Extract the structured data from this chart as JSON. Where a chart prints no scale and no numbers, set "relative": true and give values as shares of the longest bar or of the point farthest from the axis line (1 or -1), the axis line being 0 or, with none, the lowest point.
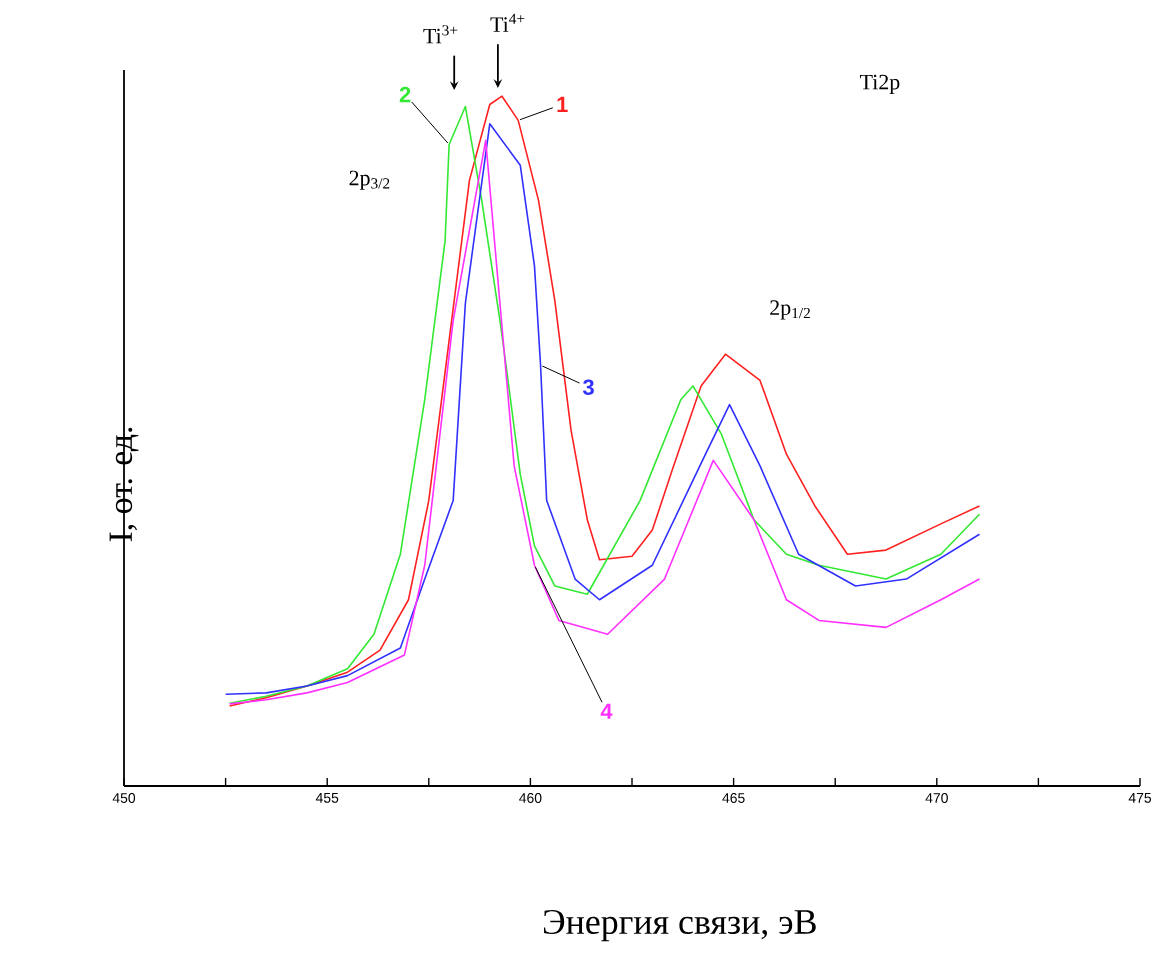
{
  "chart_data": {
    "type": "line",
    "relative": true,
    "xlabel": "Энергия связи, эВ",
    "ylabel": "I, от. ед.",
    "xlim": [
      450,
      475
    ],
    "xticks": [
      450,
      {
        "value": 452.5,
        "label": null
      },
      455,
      {
        "value": 457.5,
        "label": null
      },
      460,
      {
        "value": 462.5,
        "label": null
      },
      465,
      {
        "value": 467.5,
        "label": null
      },
      470,
      {
        "value": 472.5,
        "label": null
      },
      475
    ],
    "annotations": [
      "Ti$^{3+}$",
      "Ti$^{4+}$",
      "Ti2p",
      "2p$_{3/2}$",
      "2p$_{1/2}$"
    ],
    "legend": false,
    "grid": false,
    "marker": "none",
    "line_style": "solid",
    "series": [
      {
        "name": "1",
        "color": "#ff2020",
        "x": [
          452.6,
          453.5,
          454.5,
          455.5,
          456.3,
          457.0,
          457.5,
          458.0,
          458.5,
          459.0,
          459.3,
          459.7,
          460.2,
          460.6,
          461.0,
          461.4,
          461.7,
          462.5,
          463.0,
          463.5,
          464.2,
          464.8,
          465.65,
          466.3,
          467.0,
          467.8,
          468.75,
          470.1,
          471.05
        ],
        "values": [
          0.116,
          0.128,
          0.145,
          0.165,
          0.197,
          0.27,
          0.414,
          0.646,
          0.878,
          0.988,
          1.0,
          0.965,
          0.849,
          0.704,
          0.516,
          0.386,
          0.328,
          0.333,
          0.371,
          0.46,
          0.58,
          0.626,
          0.588,
          0.481,
          0.406,
          0.336,
          0.342,
          0.38,
          0.406
        ]
      },
      {
        "name": "2",
        "color": "#33e833",
        "x": [
          452.6,
          453.5,
          454.5,
          455.5,
          456.15,
          456.8,
          457.4,
          457.9,
          458.0,
          458.4,
          458.8,
          459.25,
          459.4,
          459.75,
          460.1,
          460.6,
          461.4,
          462.7,
          463.7,
          464.0,
          464.7,
          465.5,
          466.3,
          467.1,
          468.75,
          470.1,
          471.05
        ],
        "values": [
          0.12,
          0.13,
          0.145,
          0.17,
          0.22,
          0.336,
          0.56,
          0.79,
          0.93,
          0.985,
          0.85,
          0.675,
          0.61,
          0.452,
          0.348,
          0.29,
          0.278,
          0.414,
          0.56,
          0.58,
          0.51,
          0.386,
          0.336,
          0.32,
          0.3,
          0.336,
          0.394
        ]
      },
      {
        "name": "3",
        "color": "#3030ff",
        "x": [
          452.5,
          453.5,
          454.5,
          455.5,
          456.8,
          457.4,
          458.1,
          458.4,
          459.0,
          459.75,
          460.1,
          460.25,
          460.4,
          461.1,
          461.7,
          463.0,
          464.3,
          464.9,
          465.65,
          466.6,
          468.0,
          469.25,
          471.05
        ],
        "values": [
          0.133,
          0.135,
          0.145,
          0.16,
          0.2,
          0.3,
          0.414,
          0.7,
          0.96,
          0.9,
          0.754,
          0.61,
          0.414,
          0.3,
          0.27,
          0.32,
          0.48,
          0.553,
          0.464,
          0.336,
          0.29,
          0.3,
          0.365
        ]
      },
      {
        "name": "4",
        "color": "#ff30ff",
        "x": [
          452.6,
          453.5,
          454.5,
          455.5,
          456.9,
          457.4,
          458.1,
          458.9,
          459.6,
          460.1,
          460.7,
          461.9,
          463.3,
          464.5,
          465.5,
          466.3,
          467.1,
          468.75,
          470.1,
          471.05
        ],
        "values": [
          0.119,
          0.125,
          0.135,
          0.15,
          0.19,
          0.32,
          0.675,
          0.936,
          0.464,
          0.32,
          0.24,
          0.22,
          0.3,
          0.472,
          0.386,
          0.27,
          0.24,
          0.23,
          0.27,
          0.3
        ]
      }
    ]
  }
}
